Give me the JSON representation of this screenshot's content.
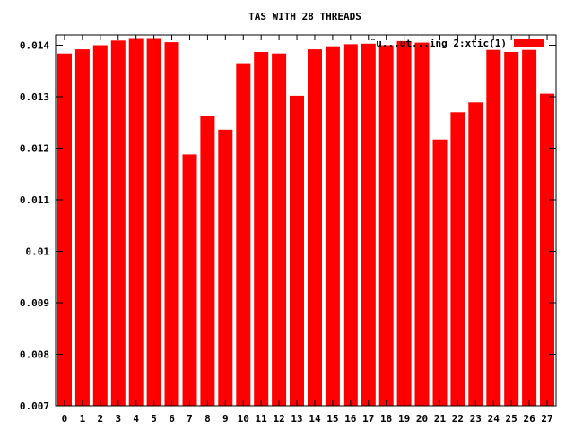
{
  "chart_data": {
    "type": "bar",
    "title": "TAS WITH 28 THREADS",
    "xlabel": "",
    "ylabel": "",
    "categories": [
      "0",
      "1",
      "2",
      "3",
      "4",
      "5",
      "6",
      "7",
      "8",
      "9",
      "10",
      "11",
      "12",
      "13",
      "14",
      "15",
      "16",
      "17",
      "18",
      "19",
      "20",
      "21",
      "22",
      "23",
      "24",
      "25",
      "26",
      "27"
    ],
    "series": [
      {
        "name": "¨u...ut...ing 2:xtic(1)",
        "color": "#ff0000",
        "values": [
          0.01384,
          0.01392,
          0.014,
          0.01409,
          0.01414,
          0.01414,
          0.01406,
          0.01188,
          0.01262,
          0.01236,
          0.01365,
          0.01387,
          0.01384,
          0.01302,
          0.01392,
          0.01398,
          0.01402,
          0.01403,
          0.014,
          0.01408,
          0.01405,
          0.01217,
          0.0127,
          0.01289,
          0.01391,
          0.01387,
          0.01391,
          0.01306
        ]
      }
    ],
    "ylim": [
      0.007,
      0.0142
    ],
    "yticks": [
      {
        "value": 0.007,
        "label": "0.007"
      },
      {
        "value": 0.008,
        "label": "0.008"
      },
      {
        "value": 0.009,
        "label": "0.009"
      },
      {
        "value": 0.01,
        "label": "0.01"
      },
      {
        "value": 0.011,
        "label": "0.011"
      },
      {
        "value": 0.012,
        "label": "0.012"
      },
      {
        "value": 0.013,
        "label": "0.013"
      },
      {
        "value": 0.014,
        "label": "0.014"
      }
    ],
    "grid": false,
    "legend_position": "top-right"
  }
}
